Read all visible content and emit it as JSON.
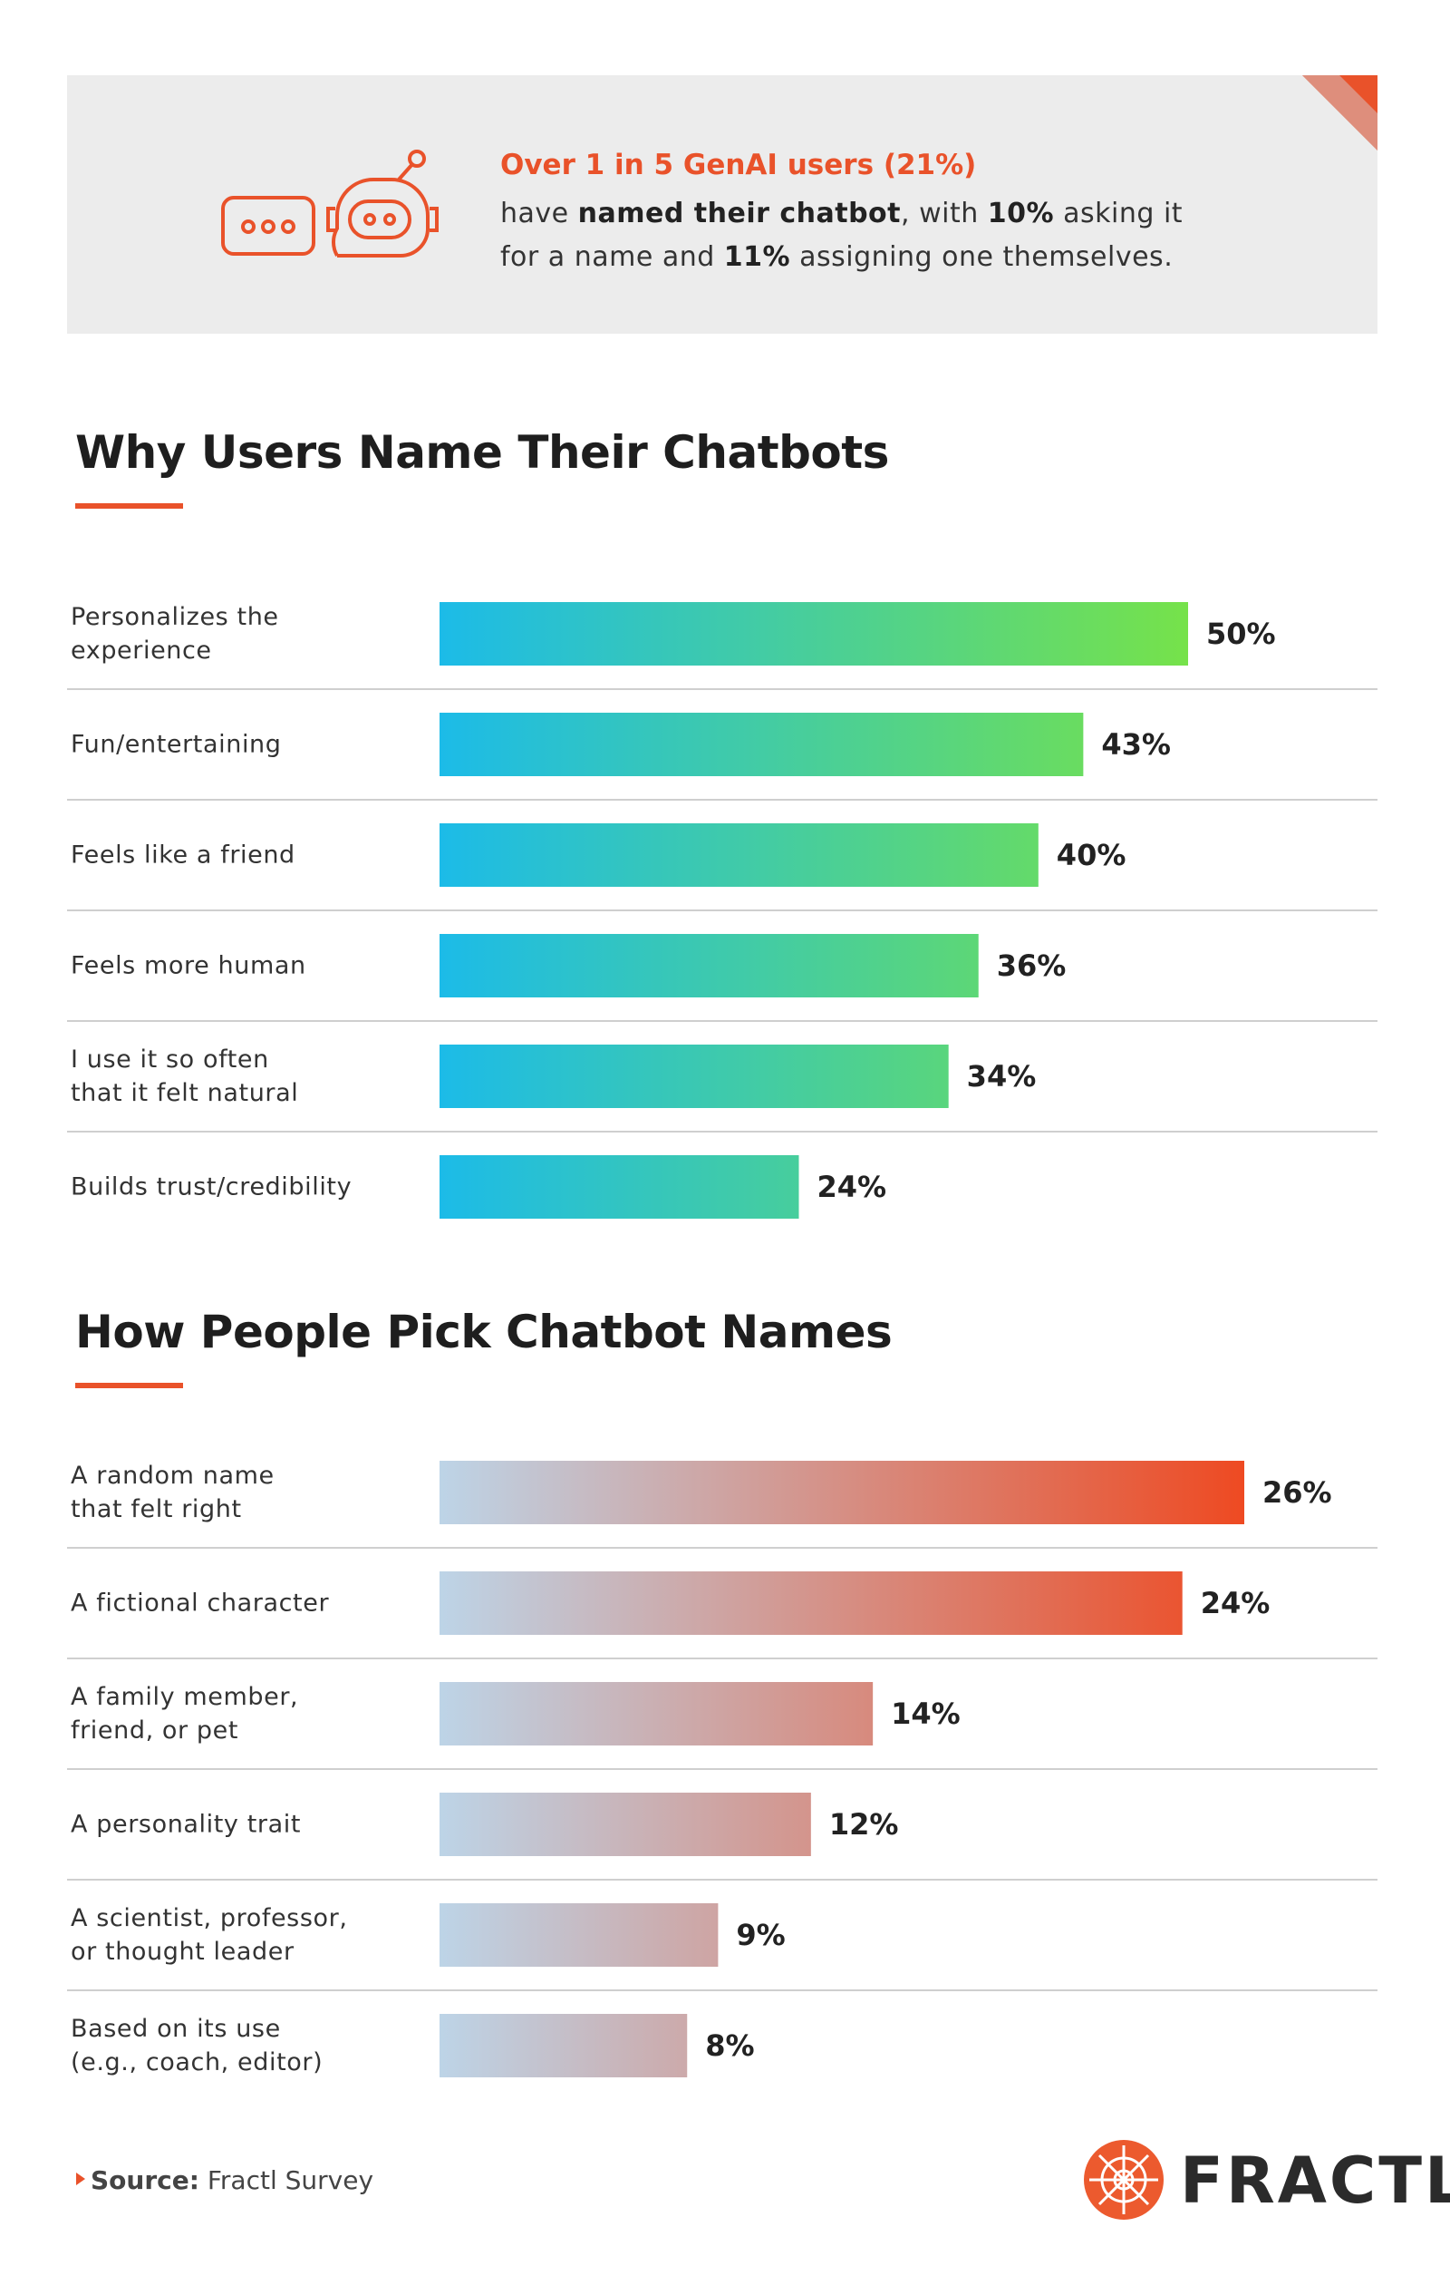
{
  "banner": {
    "headline": "Over 1 in 5 GenAI users (21%)",
    "body": [
      "have ",
      "named their chatbot",
      ", with ",
      "10%",
      " asking it for a name and ",
      "11%",
      " assigning one themselves."
    ]
  },
  "chart_data": [
    {
      "type": "bar",
      "orientation": "horizontal",
      "title": "Why Users Name Their Chatbots",
      "categories": [
        "Personalizes the\nexperience",
        "Fun/entertaining",
        "Feels like a friend",
        "Feels more human",
        "I use it so often\nthat it felt natural",
        "Builds trust/credibility"
      ],
      "values": [
        50,
        43,
        40,
        36,
        34,
        24
      ],
      "value_labels": [
        "50%",
        "43%",
        "40%",
        "36%",
        "34%",
        "24%"
      ],
      "colors": [
        "#1cbbe8",
        "#76e24a"
      ]
    },
    {
      "type": "bar",
      "orientation": "horizontal",
      "title": "How People Pick Chatbot Names",
      "categories": [
        "A random name\nthat felt right",
        "A fictional character",
        "A family member,\nfriend, or pet",
        "A personality trait",
        "A scientist, professor,\nor thought leader",
        "Based on its use\n(e.g., coach, editor)"
      ],
      "values": [
        26,
        24,
        14,
        12,
        9,
        8
      ],
      "value_labels": [
        "26%",
        "24%",
        "14%",
        "12%",
        "9%",
        "8%"
      ],
      "colors": [
        "#bdd4e7",
        "#ee4a22"
      ]
    }
  ],
  "source": {
    "label": "Source:",
    "text": "Fractl Survey"
  },
  "logo": "FRACTL"
}
